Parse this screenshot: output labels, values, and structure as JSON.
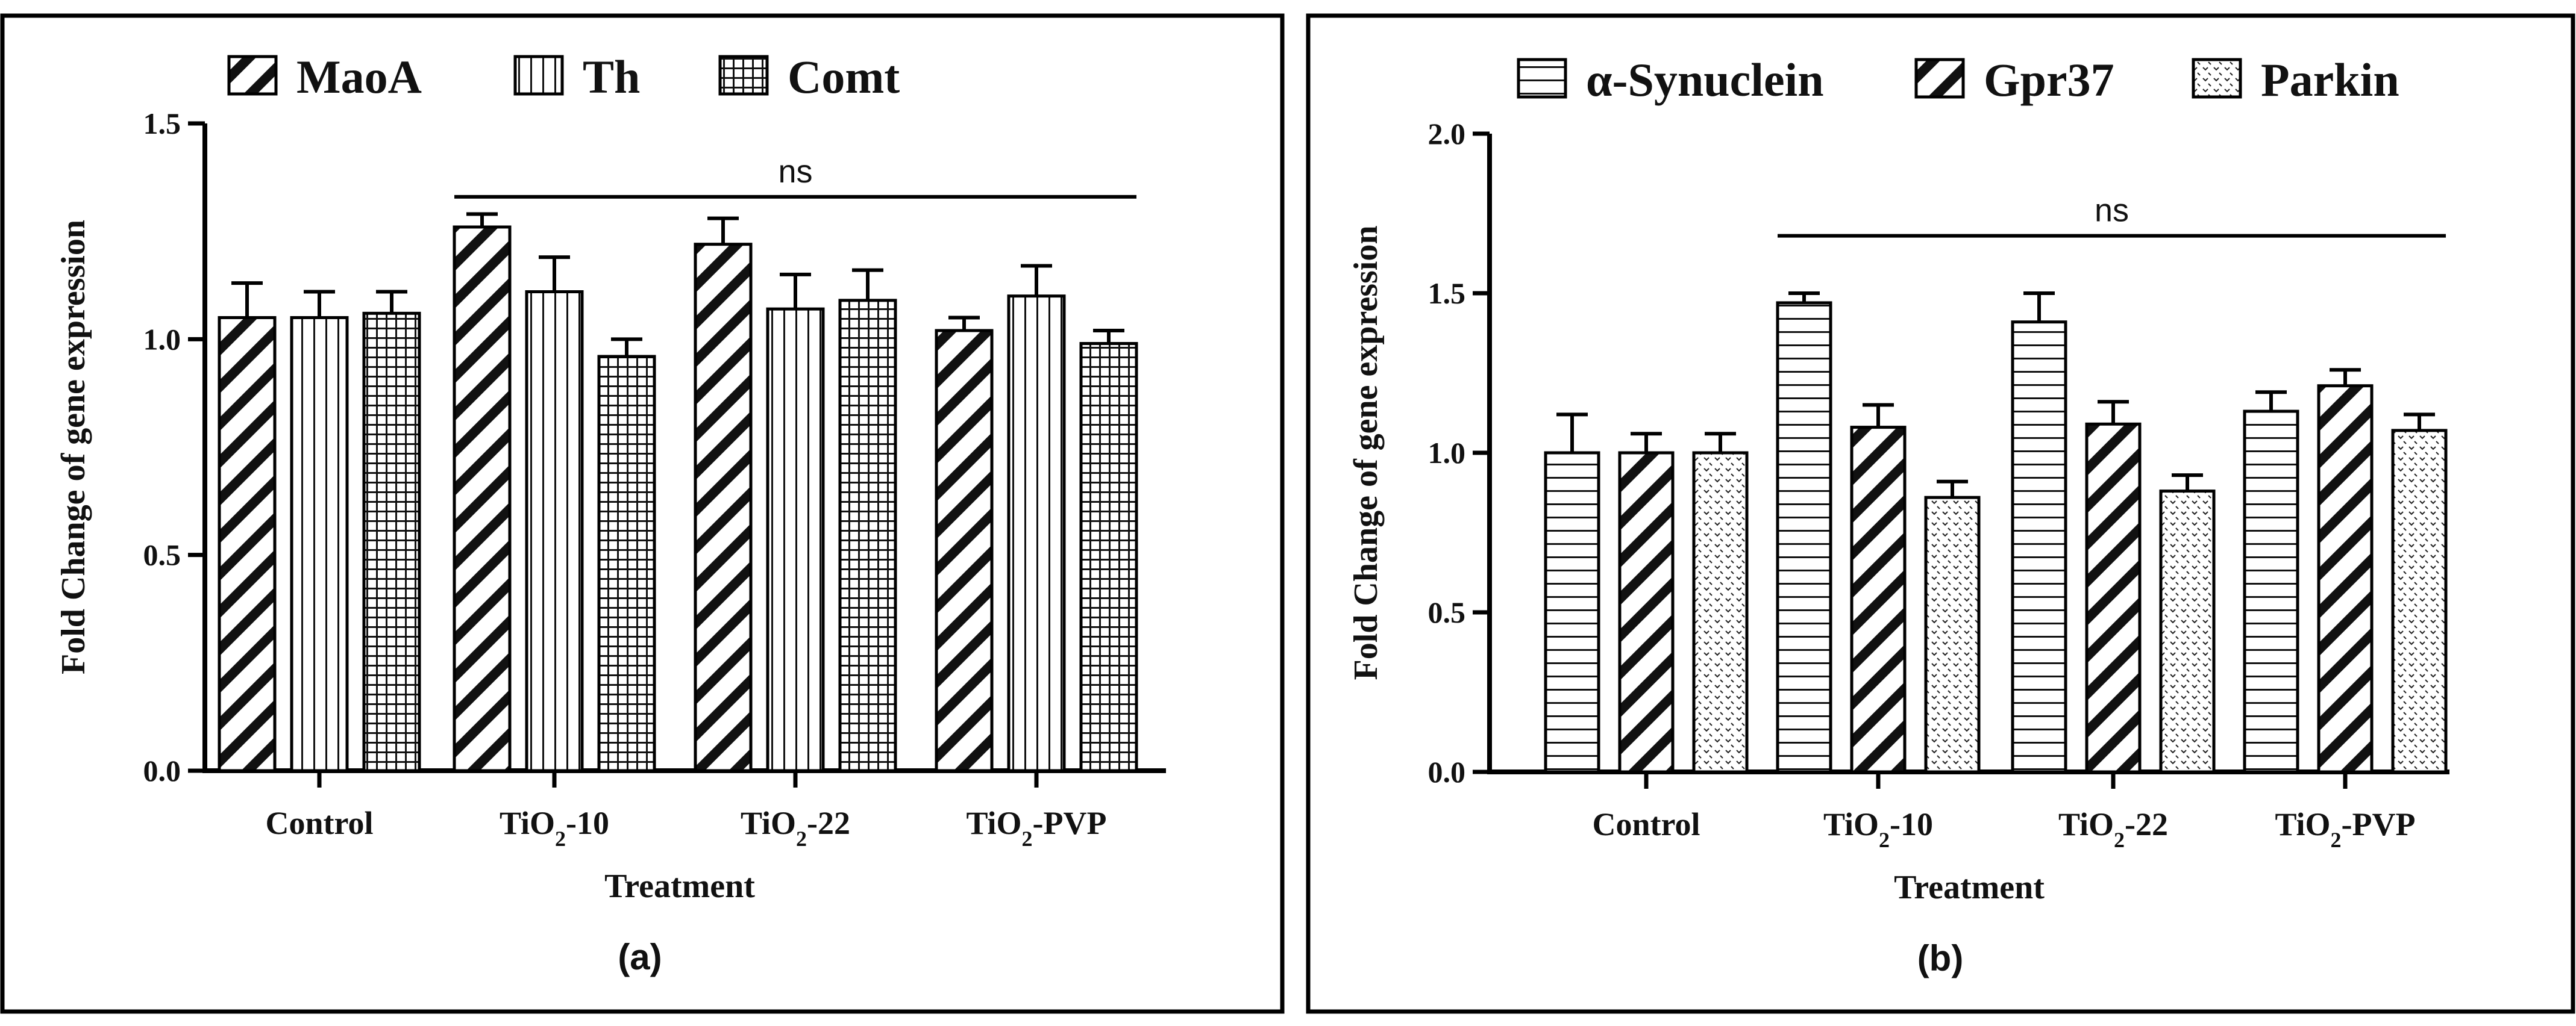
{
  "chart_data": [
    {
      "type": "bar",
      "panel_label": "(a)",
      "xlabel": "Treatment",
      "ylabel": "Fold Change of gene expression",
      "ylim": [
        0,
        1.5
      ],
      "yticks": [
        "0.0",
        "0.5",
        "1.0",
        "1.5"
      ],
      "categories": [
        {
          "main": "Control",
          "sub": "",
          "suffix": ""
        },
        {
          "main": "TiO",
          "sub": "2",
          "suffix": "-10"
        },
        {
          "main": "TiO",
          "sub": "2",
          "suffix": "-22"
        },
        {
          "main": "TiO",
          "sub": "2",
          "suffix": "-PVP"
        }
      ],
      "series": [
        {
          "name": "MaoA",
          "pattern": "diagonal",
          "values": [
            1.05,
            1.26,
            1.22,
            1.02
          ],
          "errors": [
            0.08,
            0.03,
            0.06,
            0.03
          ]
        },
        {
          "name": "Th",
          "pattern": "vertical",
          "values": [
            1.05,
            1.11,
            1.07,
            1.1
          ],
          "errors": [
            0.06,
            0.08,
            0.08,
            0.07
          ]
        },
        {
          "name": "Comt",
          "pattern": "grid",
          "values": [
            1.06,
            0.96,
            1.09,
            0.99
          ],
          "errors": [
            0.05,
            0.04,
            0.07,
            0.03
          ]
        }
      ],
      "annotation": {
        "text": "ns",
        "from_category": 1,
        "to_category": 3,
        "y": 1.33
      }
    },
    {
      "type": "bar",
      "panel_label": "(b)",
      "xlabel": "Treatment",
      "ylabel": "Fold Change of gene expression",
      "ylim": [
        0,
        2.0
      ],
      "yticks": [
        "0.0",
        "0.5",
        "1.0",
        "1.5",
        "2.0"
      ],
      "categories": [
        {
          "main": "Control",
          "sub": "",
          "suffix": ""
        },
        {
          "main": "TiO",
          "sub": "2",
          "suffix": "-10"
        },
        {
          "main": "TiO",
          "sub": "2",
          "suffix": "-22"
        },
        {
          "main": "TiO",
          "sub": "2",
          "suffix": "-PVP"
        }
      ],
      "series": [
        {
          "name": "α-Synuclein",
          "pattern": "horizontal",
          "values": [
            1.0,
            1.47,
            1.41,
            1.13
          ],
          "errors": [
            0.12,
            0.03,
            0.09,
            0.06
          ]
        },
        {
          "name": "Gpr37",
          "pattern": "diagonal",
          "values": [
            1.0,
            1.08,
            1.09,
            1.21
          ],
          "errors": [
            0.06,
            0.07,
            0.07,
            0.05
          ]
        },
        {
          "name": "Parkin",
          "pattern": "dots",
          "values": [
            1.0,
            0.86,
            0.88,
            1.07
          ],
          "errors": [
            0.06,
            0.05,
            0.05,
            0.05
          ]
        }
      ],
      "annotation": {
        "text": "ns",
        "from_category": 1,
        "to_category": 3,
        "y": 1.68
      }
    }
  ]
}
